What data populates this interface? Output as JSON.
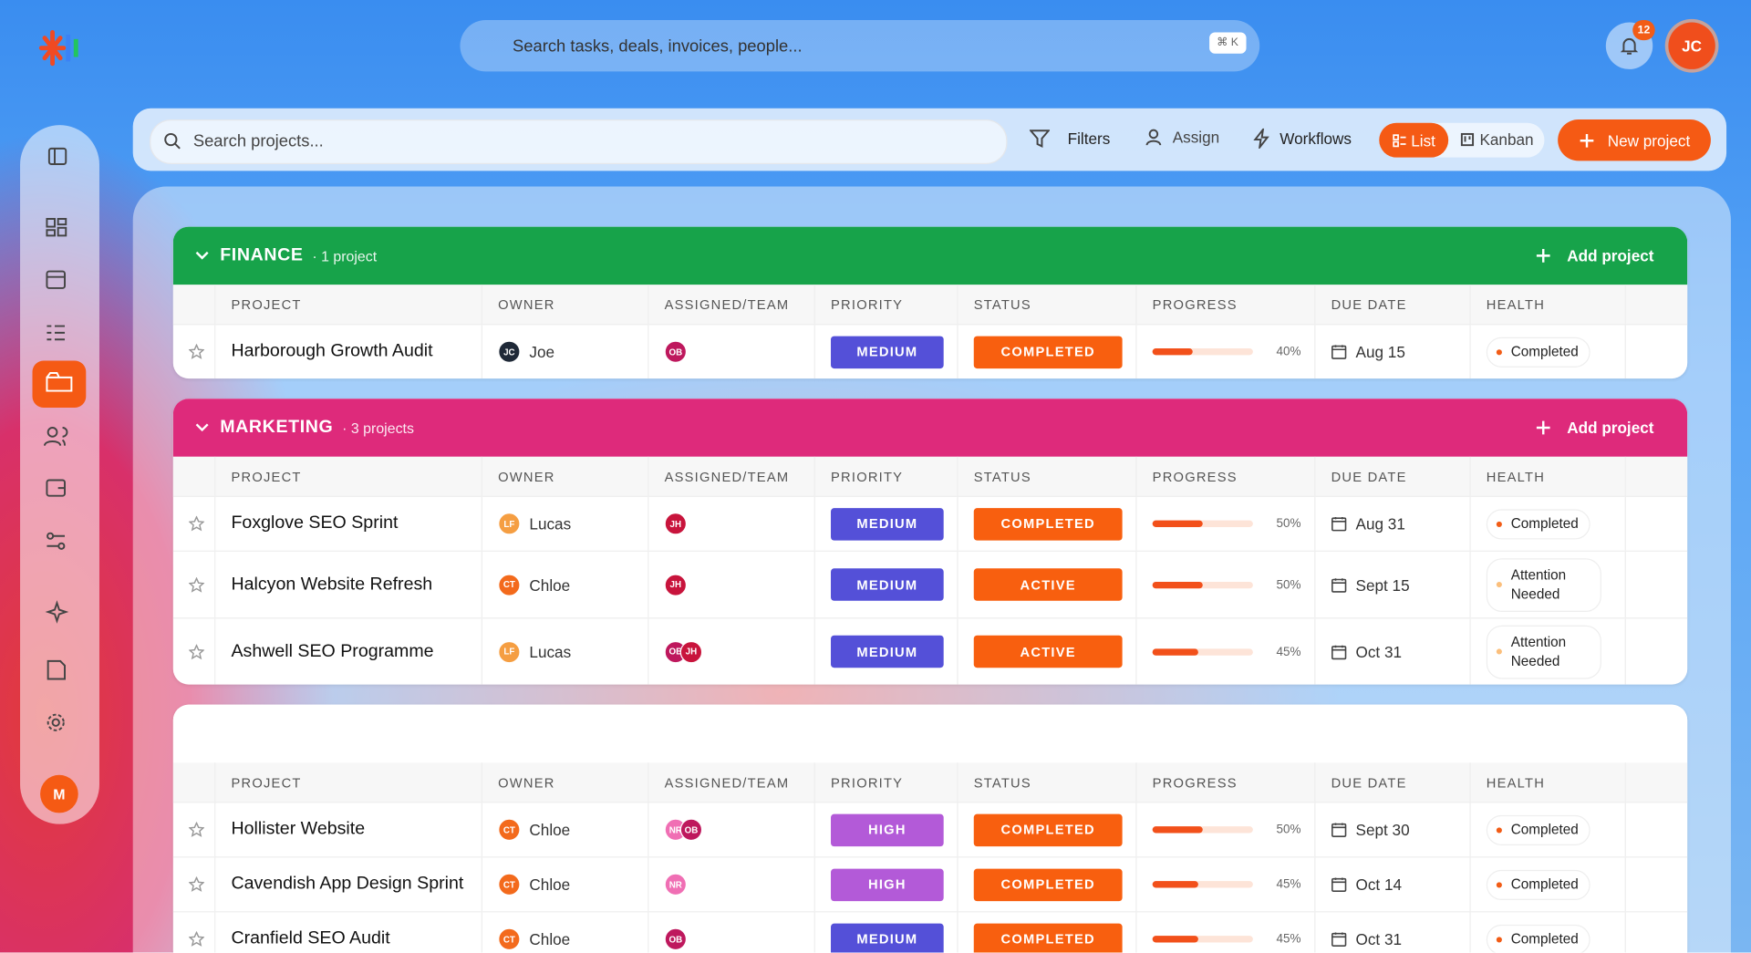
{
  "topbar": {
    "search": "Search tasks, deals, invoices, people...",
    "shortcut": "⌘ K",
    "notifications": "12",
    "avatar": "JC"
  },
  "sidebar": {
    "avatar": "M"
  },
  "toolbar": {
    "search": "Search projects...",
    "filters": "Filters",
    "assign": "Assign",
    "workflows": "Workflows",
    "list": "List",
    "kanban": "Kanban",
    "new_project": "New project"
  },
  "columns": [
    "PROJECT",
    "OWNER",
    "ASSIGNED/TEAM",
    "PRIORITY",
    "STATUS",
    "PROGRESS",
    "DUE DATE",
    "HEALTH"
  ],
  "groups": [
    {
      "name": "FINANCE",
      "count": "· 1 project",
      "add": "Add project",
      "color": "#17a34a",
      "rows": [
        {
          "project": "Harborough Growth Audit",
          "owner": {
            "initials": "JC",
            "name": "Joe",
            "color": "#1f2937"
          },
          "assigned": [
            {
              "initials": "OB",
              "color": "#be185d"
            }
          ],
          "priority": {
            "label": "MEDIUM",
            "color": "#5450d8"
          },
          "status": "COMPLETED",
          "progress": {
            "value": 40,
            "label": "40%"
          },
          "due": "Aug 15",
          "health": {
            "label": "Completed",
            "color": "#f25c16"
          }
        }
      ]
    },
    {
      "name": "MARKETING",
      "count": "· 3 projects",
      "add": "Add project",
      "color": "#de2a7b",
      "rows": [
        {
          "project": "Foxglove SEO Sprint",
          "owner": {
            "initials": "LF",
            "name": "Lucas",
            "color": "#f59e42"
          },
          "assigned": [
            {
              "initials": "JH",
              "color": "#c8143c"
            }
          ],
          "priority": {
            "label": "MEDIUM",
            "color": "#5450d8"
          },
          "status": "COMPLETED",
          "progress": {
            "value": 50,
            "label": "50%"
          },
          "due": "Aug 31",
          "health": {
            "label": "Completed",
            "color": "#f25c16"
          }
        },
        {
          "project": "Halcyon Website Refresh",
          "owner": {
            "initials": "CT",
            "name": "Chloe",
            "color": "#f36a1c"
          },
          "assigned": [
            {
              "initials": "JH",
              "color": "#c8143c"
            }
          ],
          "priority": {
            "label": "MEDIUM",
            "color": "#5450d8"
          },
          "status": "ACTIVE",
          "progress": {
            "value": 50,
            "label": "50%"
          },
          "due": "Sept 15",
          "health": {
            "label": "Attention Needed",
            "color": "#fbbf7c"
          }
        },
        {
          "project": "Ashwell SEO Programme",
          "owner": {
            "initials": "LF",
            "name": "Lucas",
            "color": "#f59e42"
          },
          "assigned": [
            {
              "initials": "OB",
              "color": "#be185d"
            },
            {
              "initials": "JH",
              "color": "#c8143c"
            }
          ],
          "priority": {
            "label": "MEDIUM",
            "color": "#5450d8"
          },
          "status": "ACTIVE",
          "progress": {
            "value": 45,
            "label": "45%"
          },
          "due": "Oct 31",
          "health": {
            "label": "Attention Needed",
            "color": "#fbbf7c"
          }
        }
      ]
    },
    {
      "rows": [
        {
          "project": "Hollister Website",
          "owner": {
            "initials": "CT",
            "name": "Chloe",
            "color": "#f36a1c"
          },
          "assigned": [
            {
              "initials": "NR",
              "color": "#f06fb4"
            },
            {
              "initials": "OB",
              "color": "#be185d"
            }
          ],
          "priority": {
            "label": "HIGH",
            "color": "#b35ad8"
          },
          "status": "COMPLETED",
          "progress": {
            "value": 50,
            "label": "50%"
          },
          "due": "Sept 30",
          "health": {
            "label": "Completed",
            "color": "#f25c16"
          }
        },
        {
          "project": "Cavendish App Design Sprint",
          "owner": {
            "initials": "CT",
            "name": "Chloe",
            "color": "#f36a1c"
          },
          "assigned": [
            {
              "initials": "NR",
              "color": "#f06fb4"
            }
          ],
          "priority": {
            "label": "HIGH",
            "color": "#b35ad8"
          },
          "status": "COMPLETED",
          "progress": {
            "value": 45,
            "label": "45%"
          },
          "due": "Oct 14",
          "health": {
            "label": "Completed",
            "color": "#f25c16"
          }
        },
        {
          "project": "Cranfield SEO Audit",
          "owner": {
            "initials": "CT",
            "name": "Chloe",
            "color": "#f36a1c"
          },
          "assigned": [
            {
              "initials": "OB",
              "color": "#be185d"
            }
          ],
          "priority": {
            "label": "MEDIUM",
            "color": "#5450d8"
          },
          "status": "COMPLETED",
          "progress": {
            "value": 45,
            "label": "45%"
          },
          "due": "Oct 31",
          "health": {
            "label": "Completed",
            "color": "#f25c16"
          }
        }
      ]
    }
  ]
}
